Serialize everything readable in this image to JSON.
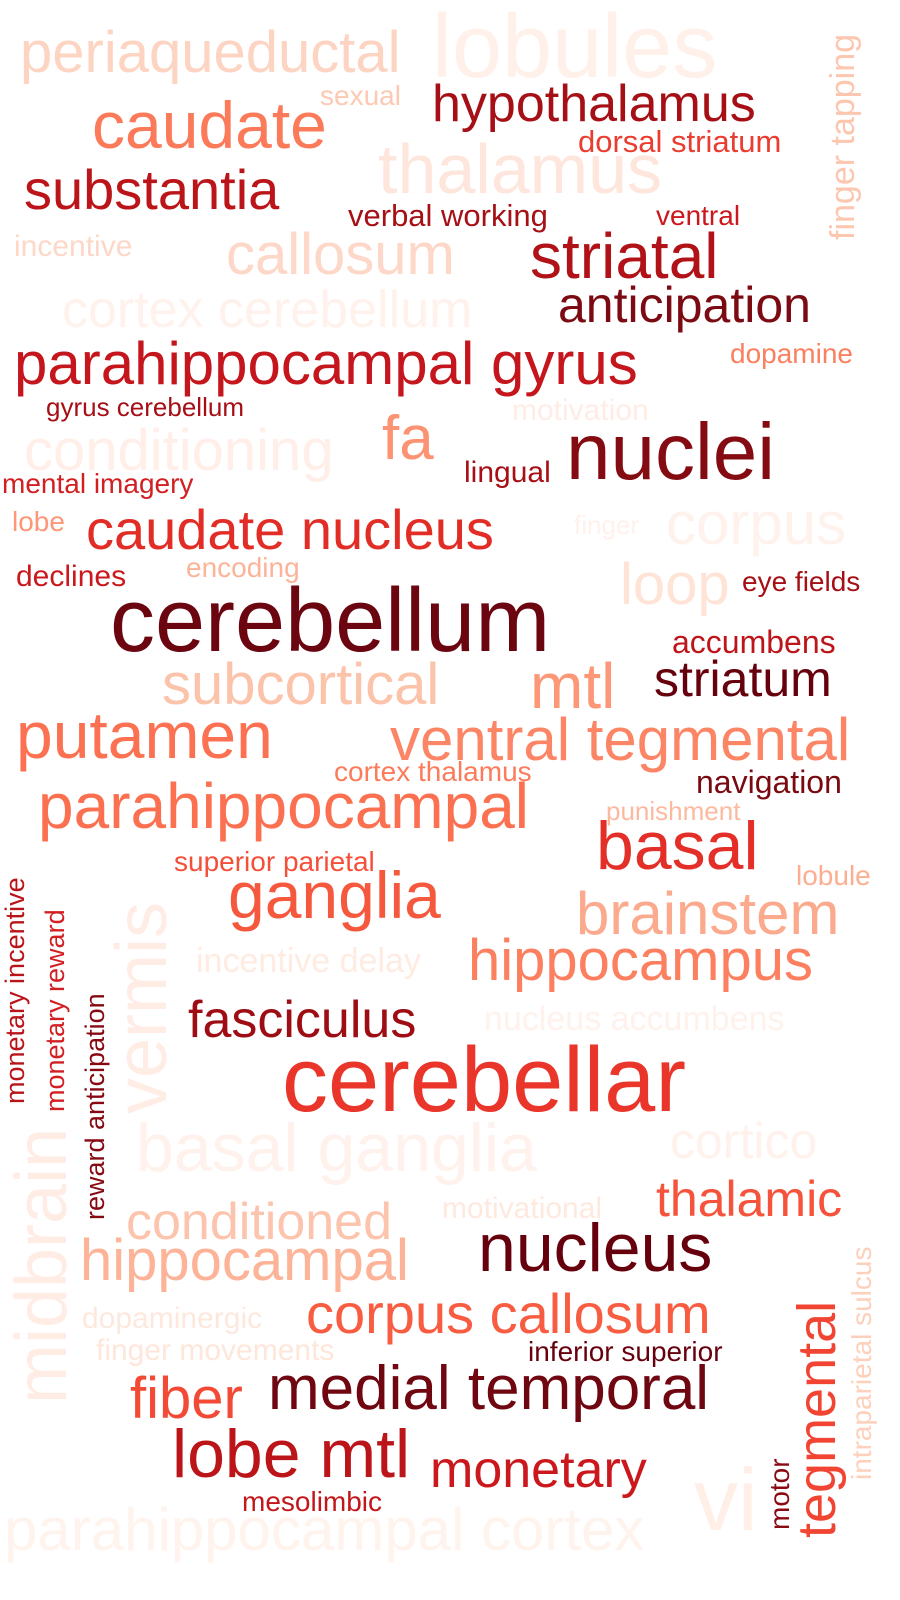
{
  "words": [
    {
      "text": "periaqueductal",
      "color": "#fdd4c2"
    },
    {
      "text": "lobules",
      "color": "#fff0e9"
    },
    {
      "text": "finger tapping",
      "color": "#fcc6af"
    },
    {
      "text": "sexual",
      "color": "#fcc9b3"
    },
    {
      "text": "hypothalamus",
      "color": "#a50f15"
    },
    {
      "text": "caudate",
      "color": "#fb7a5a"
    },
    {
      "text": "dorsal striatum",
      "color": "#eb3d2f"
    },
    {
      "text": "thalamus",
      "color": "#fee6dc"
    },
    {
      "text": "substantia",
      "color": "#bb1419"
    },
    {
      "text": "verbal working",
      "color": "#a50f15"
    },
    {
      "text": "ventral",
      "color": "#cb181d"
    },
    {
      "text": "incentive",
      "color": "#fdd7c7"
    },
    {
      "text": "callosum",
      "color": "#fdd7c7"
    },
    {
      "text": "striatal",
      "color": "#b11218"
    },
    {
      "text": "cortex cerebellum",
      "color": "#fff2ec"
    },
    {
      "text": "anticipation",
      "color": "#7c0a12"
    },
    {
      "text": "parahippocampal gyrus",
      "color": "#c4161c"
    },
    {
      "text": "dopamine",
      "color": "#fb8060"
    },
    {
      "text": "gyrus cerebellum",
      "color": "#a50f15"
    },
    {
      "text": "motivation",
      "color": "#ffece4"
    },
    {
      "text": "conditioning",
      "color": "#ffefe8"
    },
    {
      "text": "fa",
      "color": "#fc9474"
    },
    {
      "text": "lingual",
      "color": "#a50f15"
    },
    {
      "text": "nuclei",
      "color": "#850b13"
    },
    {
      "text": "mental imagery",
      "color": "#d21f22"
    },
    {
      "text": "lobe",
      "color": "#fc9878"
    },
    {
      "text": "caudate nucleus",
      "color": "#e12d26"
    },
    {
      "text": "finger",
      "color": "#fff1eb"
    },
    {
      "text": "corpus",
      "color": "#fff2ec"
    },
    {
      "text": "declines",
      "color": "#cb181d"
    },
    {
      "text": "encoding",
      "color": "#fcb499"
    },
    {
      "text": "loop",
      "color": "#fee3d6"
    },
    {
      "text": "eye fields",
      "color": "#a50f15"
    },
    {
      "text": "cerebellum",
      "color": "#6b0610"
    },
    {
      "text": "accumbens",
      "color": "#bd151a"
    },
    {
      "text": "subcortical",
      "color": "#fcc3ab"
    },
    {
      "text": "mtl",
      "color": "#fc9777"
    },
    {
      "text": "striatum",
      "color": "#67000d"
    },
    {
      "text": "putamen",
      "color": "#fb7151"
    },
    {
      "text": "ventral tegmental",
      "color": "#fc8565"
    },
    {
      "text": "cortex thalamus",
      "color": "#fb7b5b"
    },
    {
      "text": "navigation",
      "color": "#7a0910"
    },
    {
      "text": "parahippocampal",
      "color": "#fb7050"
    },
    {
      "text": "punishment",
      "color": "#fcb99f"
    },
    {
      "text": "monetary incentive",
      "color": "#b91419"
    },
    {
      "text": "vermis",
      "color": "#ffede5"
    },
    {
      "text": "superior parietal",
      "color": "#f44f39"
    },
    {
      "text": "basal",
      "color": "#e32f27"
    },
    {
      "text": "lobule",
      "color": "#fcae92"
    },
    {
      "text": "monetary reward",
      "color": "#d21f22"
    },
    {
      "text": "ganglia",
      "color": "#f6583e"
    },
    {
      "text": "brainstem",
      "color": "#fcaa8d"
    },
    {
      "text": "incentive delay",
      "color": "#ffebe2"
    },
    {
      "text": "hippocampus",
      "color": "#fc7f5f"
    },
    {
      "text": "reward anticipation",
      "color": "#860811"
    },
    {
      "text": "fasciculus",
      "color": "#9e0d14"
    },
    {
      "text": "nucleus accumbens",
      "color": "#fff1eb"
    },
    {
      "text": "cerebellar",
      "color": "#ea362a"
    },
    {
      "text": "basal ganglia",
      "color": "#fff1eb"
    },
    {
      "text": "cortico",
      "color": "#fff2ec"
    },
    {
      "text": "midbrain",
      "color": "#ffede5"
    },
    {
      "text": "motivational",
      "color": "#fee9df"
    },
    {
      "text": "thalamic",
      "color": "#f5533b"
    },
    {
      "text": "conditioned",
      "color": "#fcc4ad"
    },
    {
      "text": "hippocampal",
      "color": "#fcb398"
    },
    {
      "text": "nucleus",
      "color": "#67000d"
    },
    {
      "text": "intraparietal sulcus",
      "color": "#fdd0bc"
    },
    {
      "text": "dopaminergic",
      "color": "#fee8dd"
    },
    {
      "text": "corpus callosum",
      "color": "#f85d42"
    },
    {
      "text": "tegmental",
      "color": "#f14432"
    },
    {
      "text": "finger movements",
      "color": "#fee6da"
    },
    {
      "text": "inferior superior",
      "color": "#67000d"
    },
    {
      "text": "fiber",
      "color": "#f34a36"
    },
    {
      "text": "medial temporal",
      "color": "#6f0610"
    },
    {
      "text": "lobe mtl",
      "color": "#bb1419"
    },
    {
      "text": "monetary",
      "color": "#cb181d"
    },
    {
      "text": "mesolimbic",
      "color": "#c3161b"
    },
    {
      "text": "motor",
      "color": "#890a12"
    },
    {
      "text": "vi",
      "color": "#ffefe7"
    },
    {
      "text": "parahippocampal cortex",
      "color": "#fff3ed"
    }
  ]
}
